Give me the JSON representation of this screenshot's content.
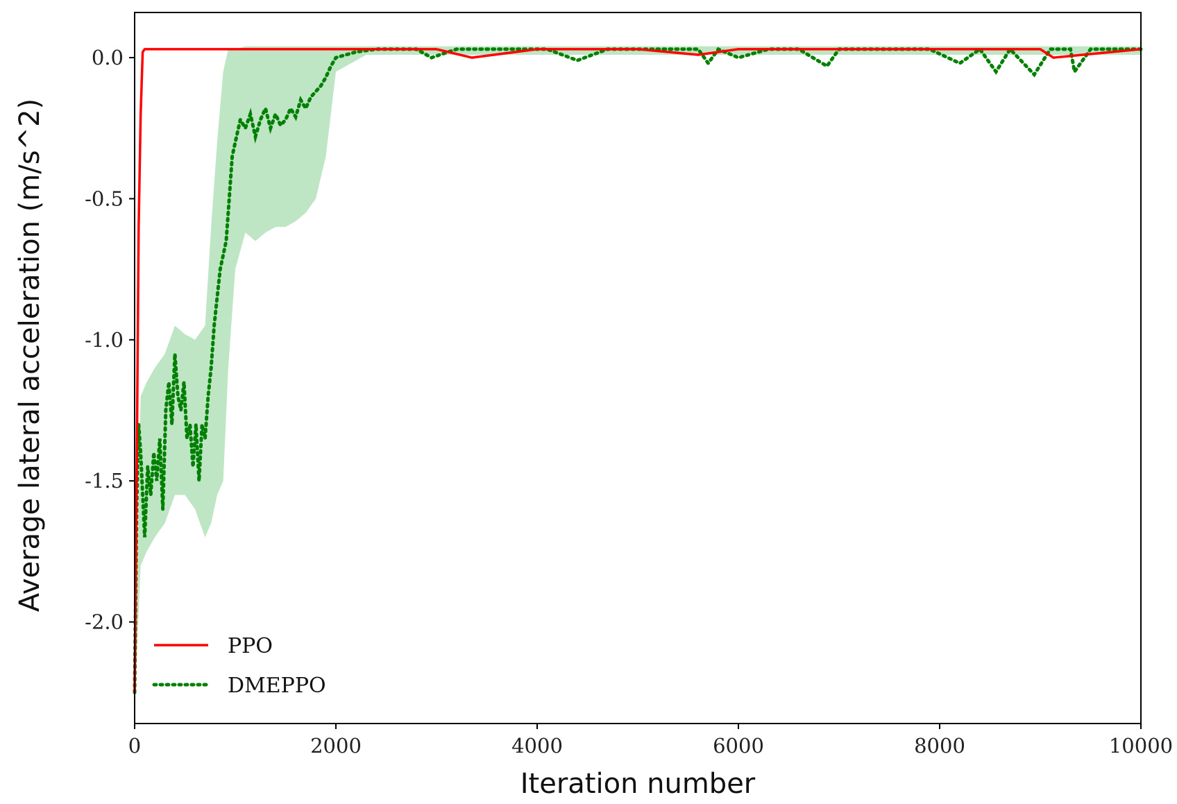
{
  "chart_data": {
    "type": "line",
    "title": "",
    "xlabel": "Iteration number",
    "ylabel": "Average lateral acceleration (m/s^2)",
    "xlim": [
      0,
      10000
    ],
    "ylim": [
      -2.36,
      0.16
    ],
    "x_ticks": [
      0,
      2000,
      4000,
      6000,
      8000,
      10000
    ],
    "x_tick_labels": [
      "0",
      "2000",
      "4000",
      "6000",
      "8000",
      "10000"
    ],
    "y_ticks": [
      0.0,
      -0.5,
      -1.0,
      -1.5,
      -2.0
    ],
    "y_tick_labels": [
      "0.0",
      "-0.5",
      "-1.0",
      "-1.5",
      "-2.0"
    ],
    "grid": false,
    "legend_position": "lower-left",
    "series": [
      {
        "name": "PPO",
        "color": "#ff0000",
        "line_style": "solid",
        "x": [
          0,
          20,
          40,
          60,
          80,
          100,
          200,
          500,
          1000,
          1500,
          2000,
          3000,
          3350,
          4000,
          5000,
          5600,
          6000,
          7000,
          8000,
          8500,
          9000,
          9130,
          10000
        ],
        "y": [
          -2.25,
          -1.5,
          -0.6,
          -0.2,
          0.02,
          0.03,
          0.03,
          0.03,
          0.03,
          0.03,
          0.03,
          0.03,
          0.0,
          0.03,
          0.03,
          0.01,
          0.03,
          0.03,
          0.03,
          0.03,
          0.03,
          0.0,
          0.03
        ]
      },
      {
        "name": "DMEPPO",
        "color": "#008000",
        "band_color": "#a8dcb0",
        "line_style": "dotted",
        "x": [
          0,
          20,
          40,
          60,
          80,
          100,
          130,
          160,
          190,
          220,
          250,
          280,
          310,
          340,
          370,
          400,
          430,
          460,
          490,
          520,
          550,
          580,
          610,
          640,
          670,
          700,
          730,
          760,
          790,
          820,
          850,
          880,
          910,
          940,
          970,
          1000,
          1050,
          1100,
          1150,
          1200,
          1250,
          1300,
          1350,
          1400,
          1450,
          1500,
          1550,
          1600,
          1650,
          1700,
          1750,
          1800,
          1850,
          1900,
          1950,
          2000,
          2200,
          2400,
          2600,
          2800,
          2950,
          3200,
          3500,
          3800,
          4100,
          4400,
          4700,
          5000,
          5300,
          5600,
          5700,
          5800,
          6000,
          6300,
          6600,
          6880,
          7000,
          7300,
          7600,
          7900,
          8200,
          8400,
          8560,
          8700,
          8940,
          9100,
          9300,
          9340,
          9500,
          9700,
          9850,
          10000
        ],
        "y": [
          -2.25,
          -1.6,
          -1.3,
          -1.4,
          -1.55,
          -1.7,
          -1.45,
          -1.55,
          -1.4,
          -1.5,
          -1.35,
          -1.6,
          -1.25,
          -1.15,
          -1.3,
          -1.05,
          -1.2,
          -1.25,
          -1.15,
          -1.35,
          -1.3,
          -1.45,
          -1.3,
          -1.5,
          -1.3,
          -1.35,
          -1.2,
          -1.1,
          -0.95,
          -0.85,
          -0.75,
          -0.7,
          -0.65,
          -0.5,
          -0.35,
          -0.3,
          -0.22,
          -0.25,
          -0.2,
          -0.28,
          -0.22,
          -0.18,
          -0.25,
          -0.2,
          -0.24,
          -0.22,
          -0.18,
          -0.21,
          -0.15,
          -0.18,
          -0.14,
          -0.12,
          -0.1,
          -0.07,
          -0.03,
          0.0,
          0.02,
          0.03,
          0.03,
          0.03,
          0.0,
          0.03,
          0.03,
          0.03,
          0.03,
          -0.01,
          0.03,
          0.03,
          0.03,
          0.03,
          -0.02,
          0.03,
          0.0,
          0.03,
          0.03,
          -0.03,
          0.03,
          0.03,
          0.03,
          0.03,
          -0.02,
          0.03,
          -0.05,
          0.03,
          -0.06,
          0.03,
          0.03,
          -0.05,
          0.03,
          0.03,
          0.03,
          0.03
        ],
        "band_x": [
          0,
          60,
          120,
          200,
          300,
          400,
          500,
          600,
          700,
          760,
          820,
          880,
          930,
          1000,
          1100,
          1200,
          1300,
          1400,
          1500,
          1600,
          1700,
          1800,
          1900,
          2000,
          2300,
          10000
        ],
        "band_lower": [
          -2.3,
          -1.8,
          -1.75,
          -1.7,
          -1.65,
          -1.55,
          -1.55,
          -1.6,
          -1.7,
          -1.65,
          -1.55,
          -1.5,
          -1.1,
          -0.75,
          -0.62,
          -0.65,
          -0.62,
          -0.6,
          -0.6,
          -0.58,
          -0.55,
          -0.5,
          -0.35,
          -0.05,
          0.01,
          0.01
        ],
        "band_upper": [
          -2.2,
          -1.2,
          -1.15,
          -1.1,
          -1.05,
          -0.95,
          -0.98,
          -1.0,
          -0.95,
          -0.6,
          -0.3,
          -0.05,
          0.03,
          0.03,
          0.04,
          0.04,
          0.04,
          0.04,
          0.04,
          0.04,
          0.04,
          0.04,
          0.04,
          0.04,
          0.04,
          0.04
        ]
      }
    ],
    "legend": [
      {
        "label": "PPO"
      },
      {
        "label": "DMEPPO"
      }
    ]
  }
}
